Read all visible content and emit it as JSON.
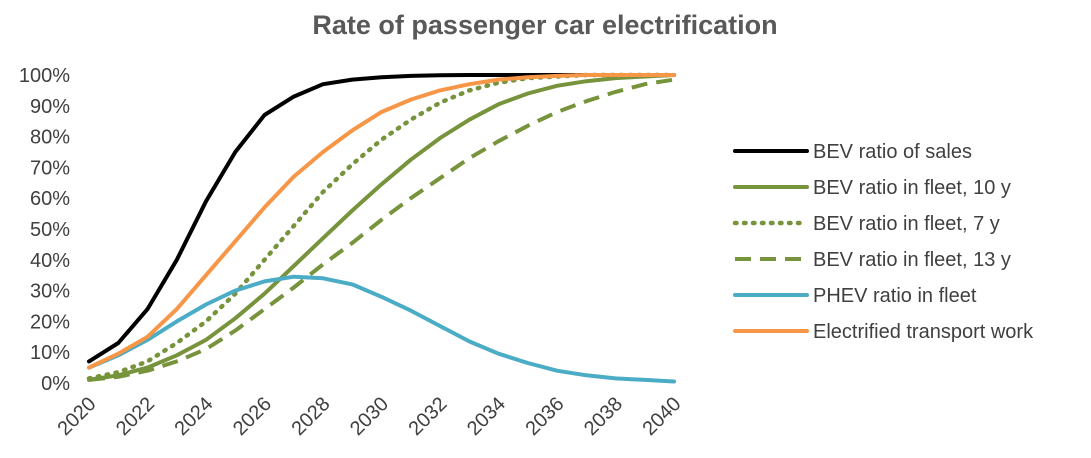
{
  "chart_data": {
    "type": "line",
    "title": "Rate of passenger car electrification",
    "xlabel": "",
    "ylabel": "",
    "x": [
      2020,
      2021,
      2022,
      2023,
      2024,
      2025,
      2026,
      2027,
      2028,
      2029,
      2030,
      2031,
      2032,
      2033,
      2034,
      2035,
      2036,
      2037,
      2038,
      2039,
      2040
    ],
    "xlim": [
      2020,
      2040
    ],
    "x_ticks": [
      "2020",
      "2022",
      "2024",
      "2026",
      "2028",
      "2030",
      "2032",
      "2034",
      "2036",
      "2038",
      "2040"
    ],
    "ylim": [
      0,
      100
    ],
    "y_ticks": [
      "0%",
      "10%",
      "20%",
      "30%",
      "40%",
      "50%",
      "60%",
      "70%",
      "80%",
      "90%",
      "100%"
    ],
    "grid": false,
    "legend_position": "right",
    "series": [
      {
        "name": "BEV ratio of sales",
        "color": "#000000",
        "dash": "solid",
        "values": [
          7,
          13,
          24,
          40,
          59,
          75,
          87,
          93,
          97,
          98.5,
          99.3,
          99.7,
          99.9,
          100,
          100,
          100,
          100,
          100,
          100,
          100,
          100
        ]
      },
      {
        "name": "BEV ratio in fleet, 10 y",
        "color": "#77933C",
        "dash": "solid",
        "values": [
          1,
          2.5,
          5,
          9,
          14,
          21,
          29,
          38,
          47,
          56,
          64.5,
          72.5,
          79.5,
          85.5,
          90.5,
          94,
          96.5,
          98,
          99,
          99.5,
          100
        ]
      },
      {
        "name": "BEV ratio in fleet, 7 y",
        "color": "#77933C",
        "dash": "dot",
        "values": [
          1.5,
          3.5,
          7,
          13,
          20,
          29,
          40,
          51,
          62,
          71,
          79,
          85.5,
          91,
          95,
          97.5,
          99,
          99.5,
          100,
          100,
          100,
          100
        ]
      },
      {
        "name": "BEV ratio in fleet, 13 y",
        "color": "#77933C",
        "dash": "dash",
        "values": [
          1,
          2,
          4,
          7,
          11,
          17,
          24,
          31,
          38.5,
          45.5,
          53,
          60,
          66.5,
          73,
          78.5,
          83.5,
          88,
          91.5,
          94.5,
          97,
          98.5
        ]
      },
      {
        "name": "PHEV ratio in fleet",
        "color": "#4BACC6",
        "dash": "solid",
        "values": [
          5,
          9,
          14,
          20,
          25.5,
          30,
          33,
          34.5,
          34,
          32,
          28,
          23.5,
          18.5,
          13.5,
          9.5,
          6.5,
          4,
          2.5,
          1.5,
          1,
          0.5
        ]
      },
      {
        "name": "Electrified transport work",
        "color": "#F79646",
        "dash": "solid",
        "values": [
          5,
          9.5,
          15,
          24,
          35,
          46,
          57,
          67,
          75,
          82,
          88,
          92,
          95,
          97,
          98.5,
          99.3,
          99.7,
          100,
          100,
          100,
          100
        ]
      }
    ]
  }
}
